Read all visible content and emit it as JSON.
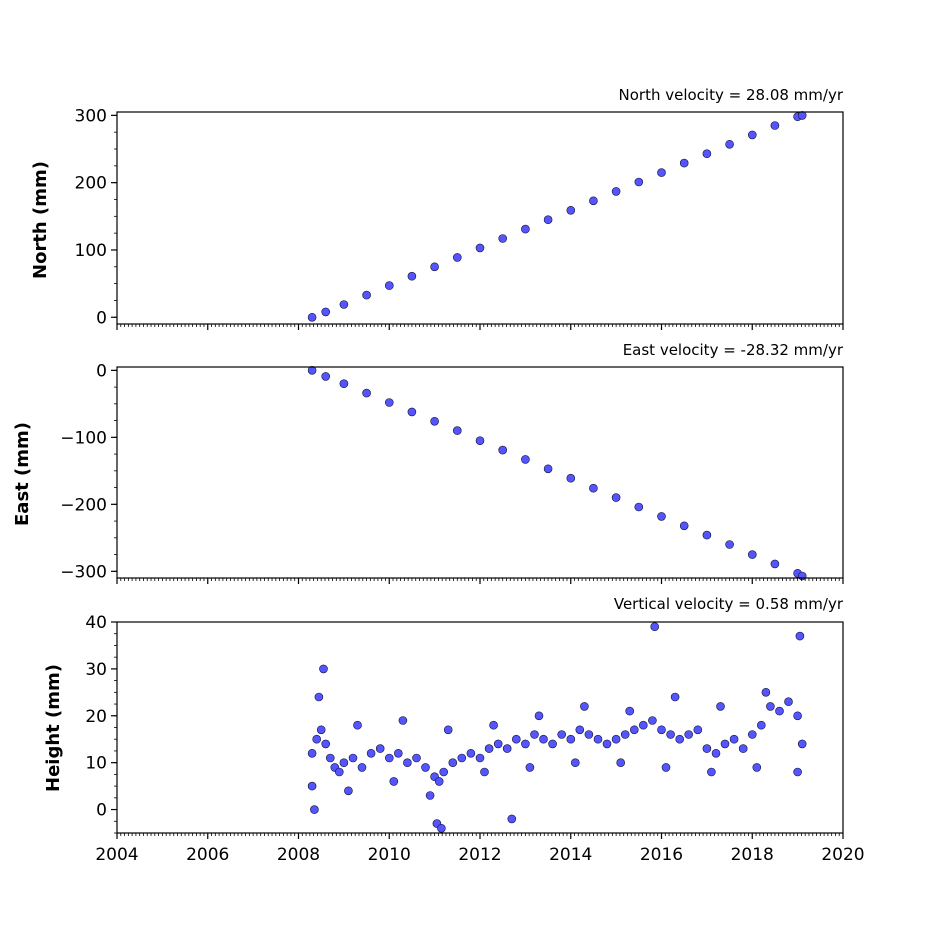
{
  "chart_data": [
    {
      "type": "scatter",
      "title": "North velocity = 28.08 mm/yr",
      "ylabel": "North (mm)",
      "xlabel": "",
      "xlim": [
        2004,
        2020
      ],
      "ylim": [
        -10,
        305
      ],
      "yticks": [
        0,
        100,
        200,
        300
      ],
      "ytick_labels": [
        "0",
        "100",
        "200",
        "300"
      ],
      "xticks": [
        2004,
        2006,
        2008,
        2010,
        2012,
        2014,
        2016,
        2018,
        2020
      ],
      "xtick_labels": [],
      "grid": false,
      "marker_color": "#5555ff",
      "edge_color": "#111133",
      "series": [
        {
          "x": [
            2008.3,
            2008.6,
            2009.0,
            2009.5,
            2010.0,
            2010.5,
            2011.0,
            2011.5,
            2012.0,
            2012.5,
            2013.0,
            2013.5,
            2014.0,
            2014.5,
            2015.0,
            2015.5,
            2016.0,
            2016.5,
            2017.0,
            2017.5,
            2018.0,
            2018.5,
            2019.0,
            2019.1
          ],
          "y": [
            0,
            8,
            19,
            33,
            47,
            61,
            75,
            89,
            103,
            117,
            131,
            145,
            159,
            173,
            187,
            201,
            215,
            229,
            243,
            257,
            271,
            285,
            298,
            300
          ]
        }
      ]
    },
    {
      "type": "scatter",
      "title": "East velocity = -28.32 mm/yr",
      "ylabel": "East (mm)",
      "xlabel": "",
      "xlim": [
        2004,
        2020
      ],
      "ylim": [
        -310,
        5
      ],
      "yticks": [
        0,
        -100,
        -200,
        -300
      ],
      "ytick_labels": [
        "0",
        "−100",
        "−200",
        "−300"
      ],
      "xticks": [
        2004,
        2006,
        2008,
        2010,
        2012,
        2014,
        2016,
        2018,
        2020
      ],
      "xtick_labels": [],
      "grid": false,
      "marker_color": "#5555ff",
      "edge_color": "#111133",
      "series": [
        {
          "x": [
            2008.3,
            2008.6,
            2009.0,
            2009.5,
            2010.0,
            2010.5,
            2011.0,
            2011.5,
            2012.0,
            2012.5,
            2013.0,
            2013.5,
            2014.0,
            2014.5,
            2015.0,
            2015.5,
            2016.0,
            2016.5,
            2017.0,
            2017.5,
            2018.0,
            2018.5,
            2019.0,
            2019.1
          ],
          "y": [
            0,
            -9,
            -20,
            -34,
            -48,
            -62,
            -76,
            -90,
            -105,
            -119,
            -133,
            -147,
            -161,
            -176,
            -190,
            -204,
            -218,
            -232,
            -246,
            -260,
            -275,
            -289,
            -303,
            -307
          ]
        }
      ]
    },
    {
      "type": "scatter",
      "title": "Vertical velocity = 0.58 mm/yr",
      "ylabel": "Height (mm)",
      "xlabel": "",
      "xlim": [
        2004,
        2020
      ],
      "ylim": [
        -5,
        40
      ],
      "yticks": [
        0,
        10,
        20,
        30,
        40
      ],
      "ytick_labels": [
        "0",
        "10",
        "20",
        "30",
        "40"
      ],
      "xticks": [
        2004,
        2006,
        2008,
        2010,
        2012,
        2014,
        2016,
        2018,
        2020
      ],
      "xtick_labels": [
        "2004",
        "2006",
        "2008",
        "2010",
        "2012",
        "2014",
        "2016",
        "2018",
        "2020"
      ],
      "grid": false,
      "marker_color": "#5555ff",
      "edge_color": "#111133",
      "series": [
        {
          "x": [
            2008.3,
            2008.4,
            2008.5,
            2008.6,
            2008.7,
            2008.8,
            2008.9,
            2009.0,
            2009.2,
            2009.4,
            2009.6,
            2009.8,
            2010.0,
            2010.2,
            2010.4,
            2010.6,
            2010.8,
            2011.0,
            2011.1,
            2011.2,
            2011.4,
            2011.6,
            2011.8,
            2012.0,
            2012.2,
            2012.4,
            2012.6,
            2012.8,
            2013.0,
            2013.2,
            2013.4,
            2013.6,
            2013.8,
            2014.0,
            2014.2,
            2014.4,
            2014.6,
            2014.8,
            2015.0,
            2015.2,
            2015.4,
            2015.6,
            2015.8,
            2016.0,
            2016.2,
            2016.4,
            2016.6,
            2016.8,
            2017.0,
            2017.2,
            2017.4,
            2017.6,
            2017.8,
            2018.0,
            2018.2,
            2018.4,
            2018.6,
            2018.8,
            2019.0,
            2019.1,
            2008.35,
            2008.55,
            2008.45,
            2011.05,
            2011.15,
            2012.7,
            2015.85,
            2019.05,
            2008.3,
            2009.1,
            2010.1,
            2010.9,
            2012.1,
            2013.1,
            2014.1,
            2015.1,
            2016.1,
            2017.1,
            2018.1,
            2019.0,
            2009.3,
            2010.3,
            2011.3,
            2012.3,
            2013.3,
            2014.3,
            2015.3,
            2016.3,
            2017.3,
            2018.3
          ],
          "y": [
            12,
            15,
            17,
            14,
            11,
            9,
            8,
            10,
            11,
            9,
            12,
            13,
            11,
            12,
            10,
            11,
            9,
            7,
            6,
            8,
            10,
            11,
            12,
            11,
            13,
            14,
            13,
            15,
            14,
            16,
            15,
            14,
            16,
            15,
            17,
            16,
            15,
            14,
            15,
            16,
            17,
            18,
            19,
            17,
            16,
            15,
            16,
            17,
            13,
            12,
            14,
            15,
            13,
            16,
            18,
            22,
            21,
            23,
            20,
            14,
            0,
            30,
            24,
            -3,
            -4,
            -2,
            39,
            37,
            5,
            4,
            6,
            3,
            8,
            9,
            10,
            10,
            9,
            8,
            9,
            8,
            18,
            19,
            17,
            18,
            20,
            22,
            21,
            24,
            22,
            25
          ]
        }
      ]
    }
  ]
}
